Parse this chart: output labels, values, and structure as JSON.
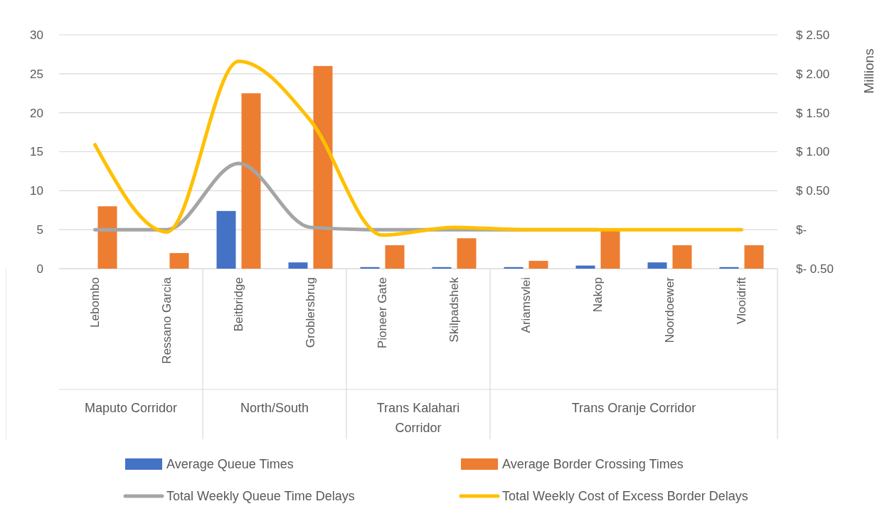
{
  "chart_data": {
    "type": "bar",
    "categories": [
      "Lebombo",
      "Ressano Garcia",
      "Beitbridge",
      "Groblersbrug",
      "Pioneer Gate",
      "Skilpadshek",
      "Ariamsvlei",
      "Nakop",
      "Noordoewer",
      "Vlooidrift"
    ],
    "series": [
      {
        "name": "Average Queue Times",
        "color": "#4472c4",
        "values": [
          0,
          0,
          7.4,
          0.8,
          0.2,
          0.2,
          0.2,
          0.4,
          0.8,
          0.2
        ]
      },
      {
        "name": "Average Border Crossing Times",
        "color": "#ed7d31",
        "values": [
          8,
          2,
          22.5,
          26,
          3,
          3.9,
          1,
          5,
          3,
          3
        ]
      },
      {
        "name": "Total Weekly Queue Time Delays",
        "type": "line",
        "axis": "y2",
        "color": "#a5a5a5",
        "values": [
          0,
          0,
          0.85,
          0.03,
          0,
          0,
          0,
          0,
          null,
          null
        ]
      },
      {
        "name": "Total Weekly Cost of Excess Border Delays",
        "type": "line",
        "axis": "y2",
        "color": "#ffc000",
        "values": [
          1.09,
          -0.03,
          2.16,
          1.4,
          -0.07,
          0.03,
          0,
          0,
          0,
          0
        ]
      }
    ],
    "annotations": [
      "Maputo Corridor",
      "North/South",
      "Trans Kalahari Corridor",
      "Trans Oranje Corridor"
    ],
    "y2label": "Millions",
    "ylim": [
      0,
      30
    ],
    "yticks": [
      0,
      5,
      10,
      15,
      20,
      25,
      30
    ],
    "y2lim": [
      -0.5,
      2.5
    ],
    "y2ticks": [
      {
        "value": -0.5,
        "label": "$- 0.50"
      },
      {
        "value": 0,
        "label": "$-"
      },
      {
        "value": 0.5,
        "label": "$ 0.50"
      },
      {
        "value": 1,
        "label": "$ 1.00"
      },
      {
        "value": 1.5,
        "label": "$ 1.50"
      },
      {
        "value": 2,
        "label": "$ 2.00"
      },
      {
        "value": 2.5,
        "label": "$ 2.50"
      }
    ],
    "grid": "y",
    "legend": "bottom"
  }
}
